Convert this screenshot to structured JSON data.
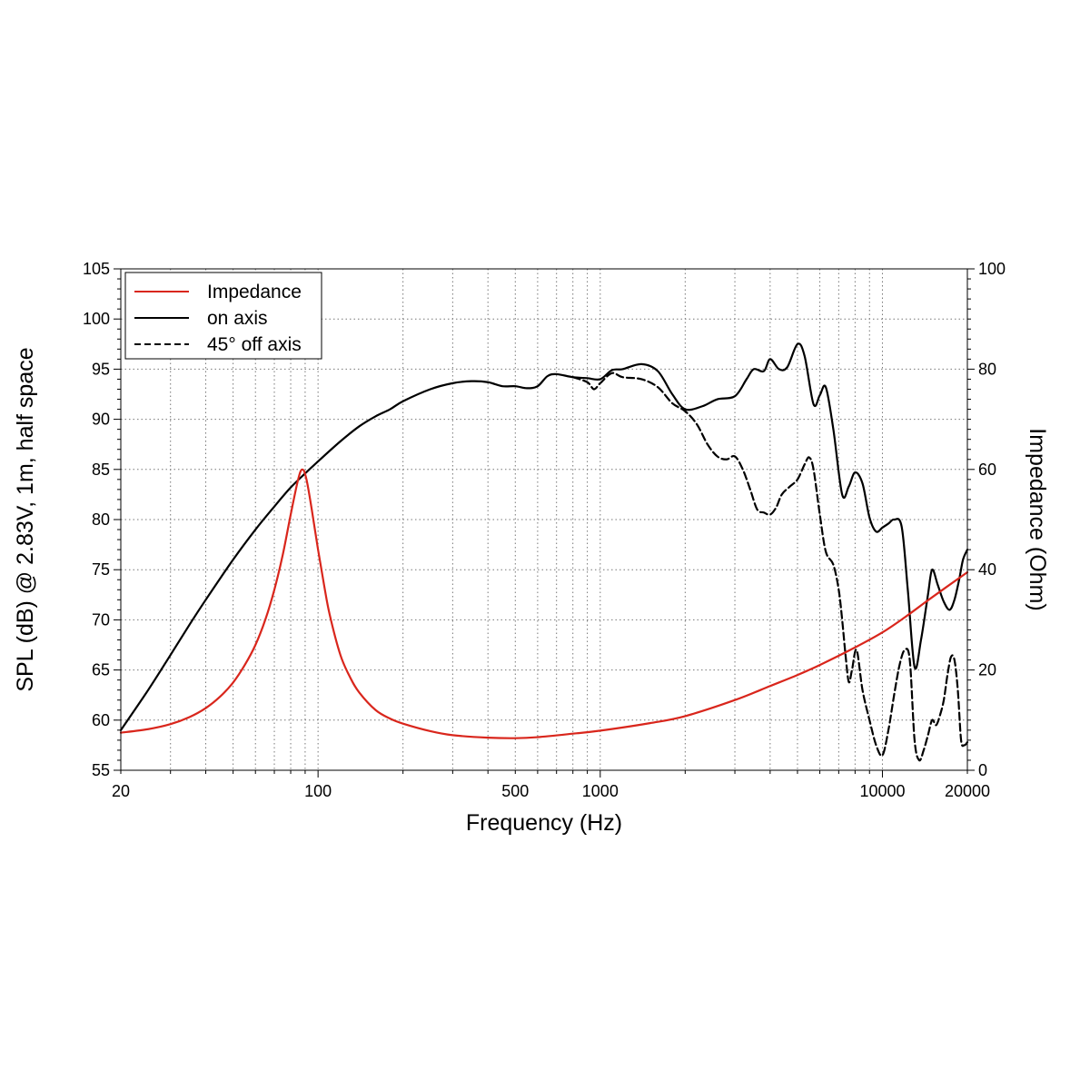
{
  "chart_data": {
    "type": "line",
    "xlabel": "Frequency (Hz)",
    "ylabel": "SPL (dB) @ 2.83V, 1m, half space",
    "y2label": "Impedance (Ohm)",
    "xscale": "log",
    "xlim": [
      20,
      20000
    ],
    "ylim": [
      55,
      105
    ],
    "y2lim": [
      0,
      100
    ],
    "x_tick_labels": [
      "20",
      "100",
      "500",
      "1000",
      "10000",
      "20000"
    ],
    "y_tick_labels": [
      "55",
      "60",
      "65",
      "70",
      "75",
      "80",
      "85",
      "90",
      "95",
      "100",
      "105"
    ],
    "y2_tick_labels": [
      "0",
      "20",
      "40",
      "60",
      "80",
      "100"
    ],
    "grid": true,
    "legend_position": "top-left",
    "series": [
      {
        "name": "Impedance",
        "axis": "right",
        "color": "#d9261c",
        "style": "solid",
        "points": [
          [
            20,
            7.5
          ],
          [
            25,
            8.2
          ],
          [
            30,
            9.2
          ],
          [
            35,
            10.6
          ],
          [
            40,
            12.4
          ],
          [
            45,
            14.7
          ],
          [
            50,
            17.5
          ],
          [
            55,
            21.0
          ],
          [
            60,
            25.0
          ],
          [
            65,
            30.0
          ],
          [
            70,
            36.0
          ],
          [
            75,
            43.0
          ],
          [
            80,
            51.0
          ],
          [
            85,
            58.0
          ],
          [
            88,
            60.0
          ],
          [
            91,
            58.0
          ],
          [
            95,
            52.0
          ],
          [
            100,
            44.0
          ],
          [
            105,
            37.0
          ],
          [
            110,
            31.0
          ],
          [
            120,
            23.0
          ],
          [
            130,
            18.5
          ],
          [
            140,
            15.5
          ],
          [
            160,
            12.0
          ],
          [
            180,
            10.3
          ],
          [
            200,
            9.3
          ],
          [
            250,
            7.8
          ],
          [
            300,
            7.0
          ],
          [
            400,
            6.5
          ],
          [
            500,
            6.4
          ],
          [
            600,
            6.6
          ],
          [
            800,
            7.3
          ],
          [
            1000,
            7.9
          ],
          [
            1500,
            9.4
          ],
          [
            2000,
            10.8
          ],
          [
            3000,
            14.0
          ],
          [
            4000,
            16.8
          ],
          [
            5000,
            19.0
          ],
          [
            6000,
            21.0
          ],
          [
            8000,
            24.5
          ],
          [
            10000,
            27.5
          ],
          [
            12000,
            30.5
          ],
          [
            15000,
            34.5
          ],
          [
            20000,
            39.5
          ]
        ]
      },
      {
        "name": "on axis",
        "axis": "left",
        "color": "#000000",
        "style": "solid",
        "points": [
          [
            20,
            59.0
          ],
          [
            25,
            63.0
          ],
          [
            30,
            66.5
          ],
          [
            35,
            69.5
          ],
          [
            40,
            72.0
          ],
          [
            50,
            76.0
          ],
          [
            60,
            79.0
          ],
          [
            70,
            81.3
          ],
          [
            80,
            83.2
          ],
          [
            90,
            84.6
          ],
          [
            100,
            85.8
          ],
          [
            120,
            87.8
          ],
          [
            140,
            89.3
          ],
          [
            160,
            90.3
          ],
          [
            180,
            91.0
          ],
          [
            200,
            91.8
          ],
          [
            250,
            93.0
          ],
          [
            300,
            93.6
          ],
          [
            350,
            93.8
          ],
          [
            400,
            93.7
          ],
          [
            450,
            93.3
          ],
          [
            500,
            93.3
          ],
          [
            550,
            93.1
          ],
          [
            600,
            93.3
          ],
          [
            650,
            94.3
          ],
          [
            700,
            94.5
          ],
          [
            800,
            94.2
          ],
          [
            900,
            94.1
          ],
          [
            1000,
            94.0
          ],
          [
            1100,
            94.9
          ],
          [
            1200,
            95.0
          ],
          [
            1400,
            95.5
          ],
          [
            1600,
            94.8
          ],
          [
            1800,
            92.5
          ],
          [
            2000,
            91.0
          ],
          [
            2300,
            91.3
          ],
          [
            2600,
            92.0
          ],
          [
            3000,
            92.3
          ],
          [
            3300,
            94.0
          ],
          [
            3500,
            95.0
          ],
          [
            3800,
            94.8
          ],
          [
            4000,
            96.0
          ],
          [
            4300,
            95.0
          ],
          [
            4600,
            95.2
          ],
          [
            5000,
            97.5
          ],
          [
            5300,
            96.3
          ],
          [
            5700,
            91.5
          ],
          [
            6000,
            92.4
          ],
          [
            6300,
            93.2
          ],
          [
            6700,
            89.0
          ],
          [
            7200,
            82.5
          ],
          [
            7600,
            83.3
          ],
          [
            8000,
            84.7
          ],
          [
            8500,
            83.6
          ],
          [
            9000,
            80.2
          ],
          [
            9500,
            78.8
          ],
          [
            10000,
            79.2
          ],
          [
            10500,
            79.6
          ],
          [
            11000,
            80.0
          ],
          [
            11700,
            79.3
          ],
          [
            12300,
            73.0
          ],
          [
            13000,
            65.3
          ],
          [
            13700,
            68.0
          ],
          [
            14500,
            72.5
          ],
          [
            15000,
            75.0
          ],
          [
            15700,
            73.5
          ],
          [
            16500,
            71.8
          ],
          [
            17300,
            71.0
          ],
          [
            18000,
            72.0
          ],
          [
            18700,
            74.0
          ],
          [
            19300,
            76.0
          ],
          [
            20000,
            77.0
          ]
        ]
      },
      {
        "name": "45° off axis",
        "axis": "left",
        "color": "#000000",
        "style": "dashed",
        "points": [
          [
            800,
            94.2
          ],
          [
            900,
            93.7
          ],
          [
            950,
            93.0
          ],
          [
            1000,
            93.6
          ],
          [
            1100,
            94.6
          ],
          [
            1200,
            94.2
          ],
          [
            1400,
            94.0
          ],
          [
            1600,
            93.2
          ],
          [
            1800,
            91.6
          ],
          [
            2000,
            90.8
          ],
          [
            2200,
            89.5
          ],
          [
            2400,
            87.5
          ],
          [
            2600,
            86.3
          ],
          [
            2800,
            86.0
          ],
          [
            3000,
            86.3
          ],
          [
            3200,
            85.0
          ],
          [
            3400,
            83.0
          ],
          [
            3600,
            81.0
          ],
          [
            3800,
            80.7
          ],
          [
            4000,
            80.5
          ],
          [
            4200,
            81.2
          ],
          [
            4400,
            82.5
          ],
          [
            4700,
            83.3
          ],
          [
            5000,
            84.0
          ],
          [
            5300,
            85.5
          ],
          [
            5500,
            86.2
          ],
          [
            5700,
            85.0
          ],
          [
            6000,
            80.5
          ],
          [
            6300,
            76.8
          ],
          [
            6700,
            75.5
          ],
          [
            7000,
            73.0
          ],
          [
            7200,
            70.0
          ],
          [
            7400,
            66.5
          ],
          [
            7600,
            63.8
          ],
          [
            7800,
            65.0
          ],
          [
            8100,
            67.0
          ],
          [
            8500,
            63.0
          ],
          [
            9000,
            60.0
          ],
          [
            9500,
            57.5
          ],
          [
            10000,
            56.5
          ],
          [
            10500,
            59.0
          ],
          [
            11000,
            62.5
          ],
          [
            11500,
            65.5
          ],
          [
            12000,
            67.0
          ],
          [
            12500,
            66.0
          ],
          [
            13000,
            58.0
          ],
          [
            13500,
            56.0
          ],
          [
            14000,
            57.0
          ],
          [
            14500,
            58.5
          ],
          [
            15000,
            60.0
          ],
          [
            15500,
            59.5
          ],
          [
            16000,
            60.5
          ],
          [
            16500,
            62.0
          ],
          [
            17000,
            64.5
          ],
          [
            17500,
            66.3
          ],
          [
            18000,
            66.0
          ],
          [
            18500,
            63.0
          ],
          [
            19000,
            58.0
          ],
          [
            19500,
            57.5
          ],
          [
            20000,
            57.8
          ]
        ]
      }
    ]
  }
}
